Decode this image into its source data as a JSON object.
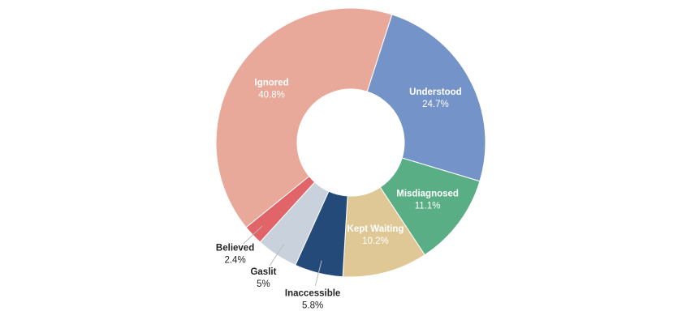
{
  "chart_data": {
    "type": "pie",
    "categories": [
      "Understood",
      "Misdiagnosed",
      "Kept Waiting",
      "Inaccessible",
      "Gaslit",
      "Believed",
      "Ignored"
    ],
    "values": [
      24.7,
      11.1,
      10.2,
      5.8,
      5,
      2.4,
      40.8
    ],
    "value_labels": [
      "24.7%",
      "11.1%",
      "10.2%",
      "5.8%",
      "5%",
      "2.4%",
      "40.8%"
    ],
    "colors": [
      "#7393c9",
      "#5aae86",
      "#e0c896",
      "#244a7a",
      "#c9d2dc",
      "#e06468",
      "#e9a99a"
    ]
  }
}
